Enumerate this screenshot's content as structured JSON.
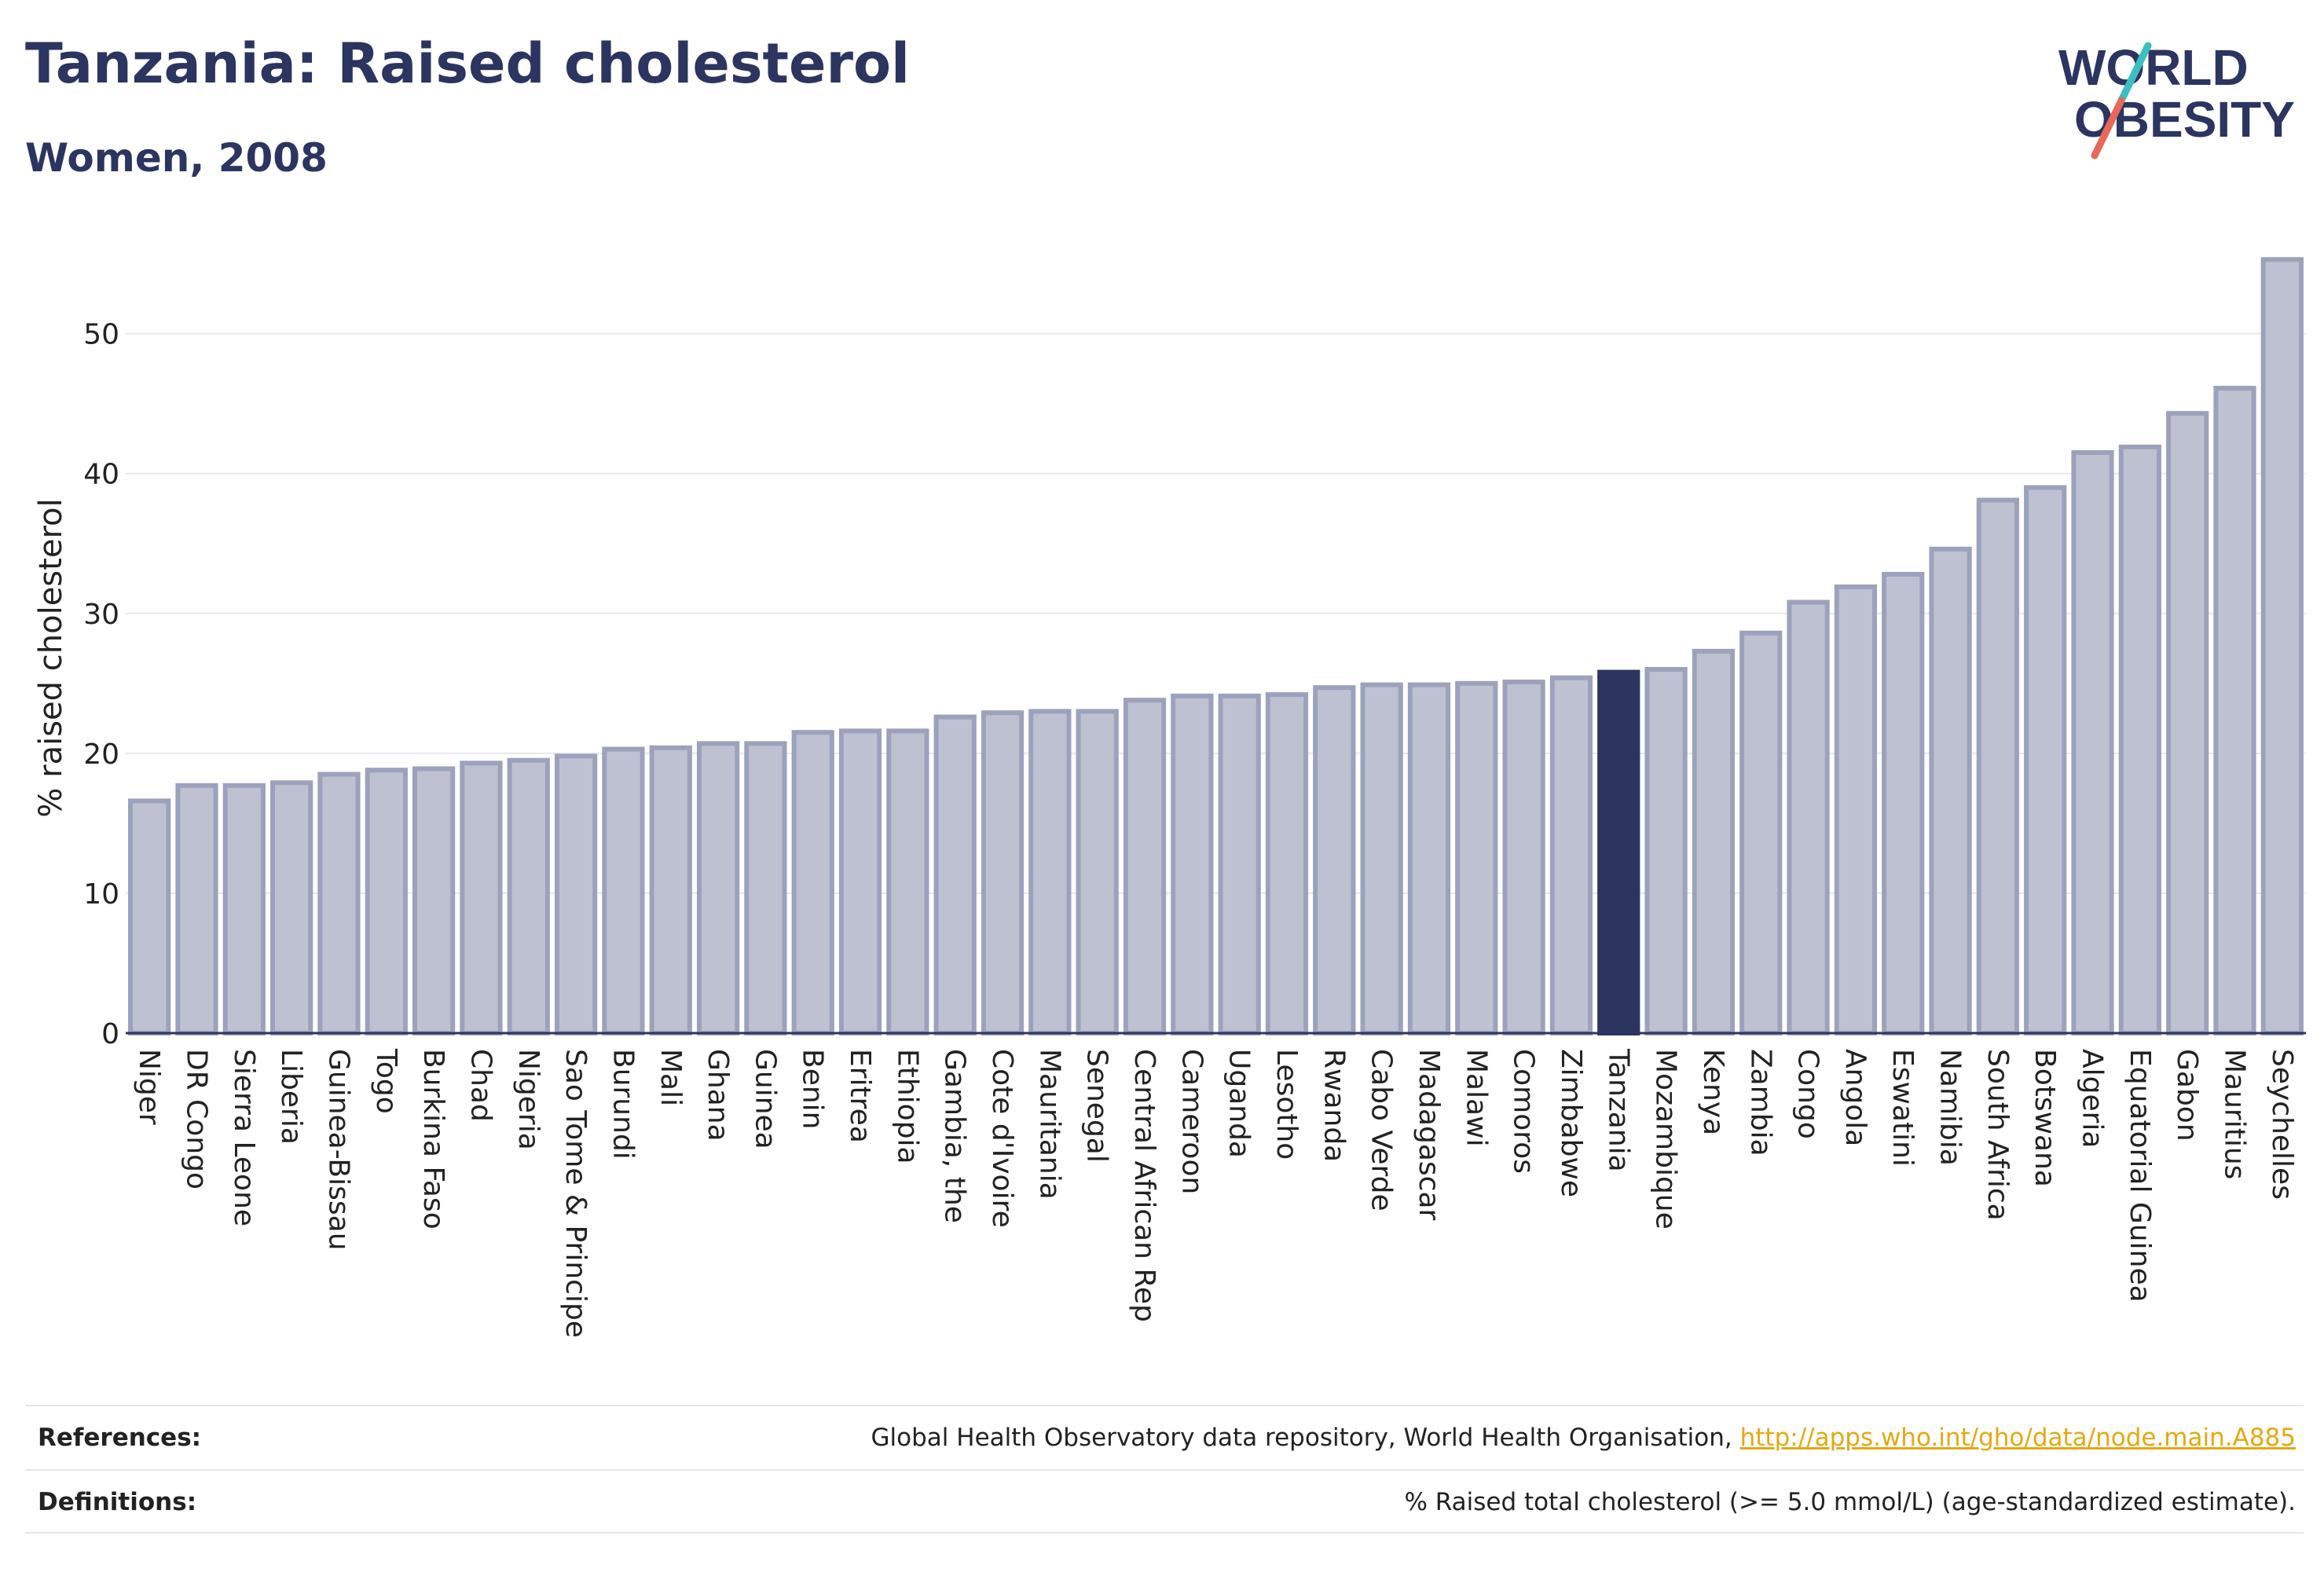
{
  "header": {
    "title": "Tanzania: Raised cholesterol",
    "subtitle": "Women, 2008"
  },
  "logo": {
    "line1": "WORLD",
    "line2": "OBESITY"
  },
  "chart_data": {
    "type": "bar",
    "ylabel": "% raised cholesterol",
    "xlabel": "",
    "ylim": [
      0,
      57
    ],
    "yticks": [
      0,
      10,
      20,
      30,
      40,
      50
    ],
    "grid": true,
    "highlight": "Tanzania",
    "categories": [
      "Niger",
      "DR Congo",
      "Sierra Leone",
      "Liberia",
      "Guinea-Bissau",
      "Togo",
      "Burkina Faso",
      "Chad",
      "Nigeria",
      "Sao Tome & Principe",
      "Burundi",
      "Mali",
      "Ghana",
      "Guinea",
      "Benin",
      "Eritrea",
      "Ethiopia",
      "Gambia, the",
      "Cote d'Ivoire",
      "Mauritania",
      "Senegal",
      "Central African Rep",
      "Cameroon",
      "Uganda",
      "Lesotho",
      "Rwanda",
      "Cabo Verde",
      "Madagascar",
      "Malawi",
      "Comoros",
      "Zimbabwe",
      "Tanzania",
      "Mozambique",
      "Kenya",
      "Zambia",
      "Congo",
      "Angola",
      "Eswatini",
      "Namibia",
      "South Africa",
      "Botswana",
      "Algeria",
      "Equatorial Guinea",
      "Gabon",
      "Mauritius",
      "Seychelles"
    ],
    "values": [
      16.6,
      17.7,
      17.7,
      17.9,
      18.5,
      18.8,
      18.9,
      19.3,
      19.5,
      19.8,
      20.3,
      20.4,
      20.7,
      20.7,
      21.5,
      21.6,
      21.6,
      22.6,
      22.9,
      23.0,
      23.0,
      23.8,
      24.1,
      24.1,
      24.2,
      24.7,
      24.9,
      24.9,
      25.0,
      25.1,
      25.4,
      25.8,
      26.0,
      27.3,
      28.6,
      30.8,
      31.9,
      32.8,
      34.6,
      38.1,
      39.0,
      41.5,
      41.9,
      44.3,
      46.1,
      55.3
    ],
    "colors": {
      "bar": "#bec1d1",
      "bar_border": "#9da2bc",
      "highlight": "#2b3560",
      "grid": "#e6e8ee",
      "axis": "#2b3560"
    }
  },
  "footer": {
    "references_label": "References:",
    "references_text": "Global Health Observatory data repository, World Health Organisation, ",
    "references_link": "http://apps.who.int/gho/data/node.main.A885",
    "definitions_label": "Definitions:",
    "definitions_text": "% Raised total cholesterol (>= 5.0 mmol/L) (age-standardized estimate)."
  }
}
